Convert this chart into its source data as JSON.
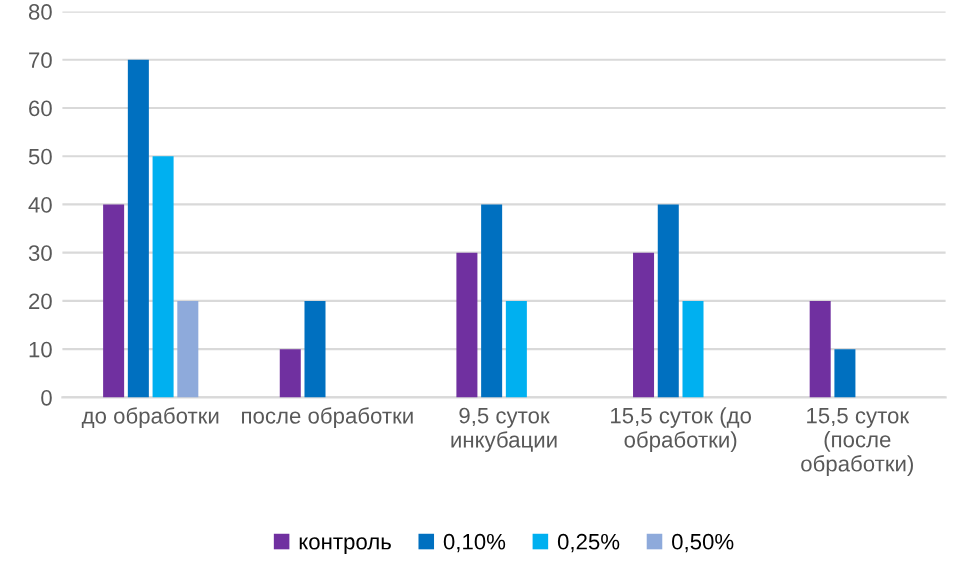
{
  "chart_data": {
    "type": "bar",
    "categories": [
      "до обработки",
      "после обработки",
      "9,5 суток\nинкубации",
      "15,5 суток (до\nобработки)",
      "15,5 суток\n(после\nобработки)"
    ],
    "series": [
      {
        "name": "контроль",
        "color": "#7030a0",
        "values": [
          40,
          10,
          30,
          30,
          20
        ]
      },
      {
        "name": "0,10%",
        "color": "#0070c0",
        "values": [
          70,
          20,
          40,
          40,
          10
        ]
      },
      {
        "name": "0,25%",
        "color": "#00b0f0",
        "values": [
          50,
          null,
          20,
          20,
          null
        ]
      },
      {
        "name": "0,50%",
        "color": "#8eaadb",
        "values": [
          20,
          null,
          null,
          null,
          null
        ]
      }
    ],
    "ylim": [
      0,
      80
    ],
    "yticks": [
      0,
      10,
      20,
      30,
      40,
      50,
      60,
      70,
      80
    ],
    "grid": "y",
    "legend": "bottom"
  }
}
